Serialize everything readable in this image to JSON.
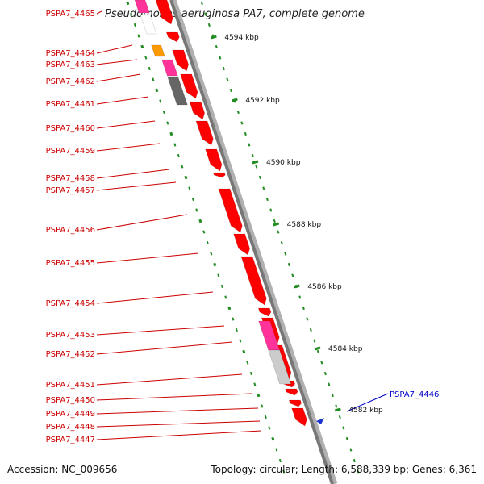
{
  "header": {
    "title": "Pseudomonas aeruginosa PA7, complete genome"
  },
  "footer": {
    "accession": "Accession: NC_009656",
    "topology": "Topology: circular; Length: 6,588,339 bp; Genes: 6,361"
  },
  "colors": {
    "gene_red": "#ff0000",
    "gene_pink": "#ff3399",
    "gene_orange": "#ff9900",
    "gene_darkgray": "#666666",
    "gene_lightgray": "#cccccc",
    "backbone": "#888888",
    "tick_green": "#228b22",
    "label_red": "#cc0000",
    "label_blue": "#0000cc"
  },
  "scale_labels": [
    "4594 kbp",
    "4592 kbp",
    "4590 kbp",
    "4588 kbp",
    "4586 kbp",
    "4584 kbp",
    "4582 kbp"
  ],
  "gene_labels": [
    {
      "text": "PSPA7_4465",
      "color": "red"
    },
    {
      "text": "PSPA7_4464",
      "color": "red"
    },
    {
      "text": "PSPA7_4463",
      "color": "red"
    },
    {
      "text": "PSPA7_4462",
      "color": "red"
    },
    {
      "text": "PSPA7_4461",
      "color": "red"
    },
    {
      "text": "PSPA7_4460",
      "color": "red"
    },
    {
      "text": "PSPA7_4459",
      "color": "red"
    },
    {
      "text": "PSPA7_4458",
      "color": "red"
    },
    {
      "text": "PSPA7_4457",
      "color": "red"
    },
    {
      "text": "PSPA7_4456",
      "color": "red"
    },
    {
      "text": "PSPA7_4455",
      "color": "red"
    },
    {
      "text": "PSPA7_4454",
      "color": "red"
    },
    {
      "text": "PSPA7_4453",
      "color": "red"
    },
    {
      "text": "PSPA7_4452",
      "color": "red"
    },
    {
      "text": "PSPA7_4451",
      "color": "red"
    },
    {
      "text": "PSPA7_4450",
      "color": "red"
    },
    {
      "text": "PSPA7_4449",
      "color": "red"
    },
    {
      "text": "PSPA7_4448",
      "color": "red"
    },
    {
      "text": "PSPA7_4447",
      "color": "red"
    },
    {
      "text": "PSPA7_4446",
      "color": "blue"
    }
  ]
}
